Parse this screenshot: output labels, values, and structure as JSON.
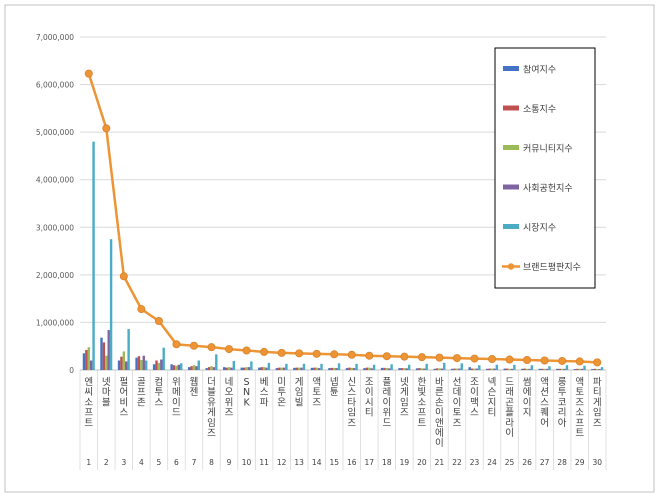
{
  "chart_data": {
    "type": "bar",
    "combo_line_series": "브랜드평판지수",
    "categories": [
      "엔씨소프트",
      "넷마블",
      "펄어비스",
      "골프존",
      "컴투스",
      "위메이드",
      "웹젠",
      "더블유게임즈",
      "네오위즈",
      "SNK",
      "베스파",
      "미투온",
      "게임빌",
      "액토즈",
      "넵튠",
      "신스타임즈",
      "조이시티",
      "플레이위드",
      "넷게임즈",
      "한빛소프트",
      "바른손이앤에이",
      "선데이토즈",
      "조이맥스",
      "넥슨지티",
      "드래곤플라이",
      "썸에이지",
      "액션스퀘어",
      "룽투코리아",
      "액토즈소프트",
      "파티게임즈"
    ],
    "ranks": [
      "1",
      "2",
      "3",
      "4",
      "5",
      "6",
      "7",
      "8",
      "9",
      "10",
      "11",
      "12",
      "13",
      "14",
      "15",
      "16",
      "17",
      "18",
      "19",
      "20",
      "21",
      "22",
      "23",
      "24",
      "25",
      "26",
      "27",
      "28",
      "29",
      "30"
    ],
    "series": [
      {
        "name": "참여지수",
        "color": "#4472c4",
        "values": [
          350000,
          680000,
          200000,
          260000,
          120000,
          120000,
          60000,
          40000,
          60000,
          50000,
          50000,
          40000,
          45000,
          45000,
          40000,
          40000,
          40000,
          45000,
          40000,
          35000,
          25000,
          25000,
          60000,
          25000,
          30000,
          25000,
          25000,
          25000,
          20000,
          20000
        ]
      },
      {
        "name": "소통지수",
        "color": "#c0504d",
        "values": [
          420000,
          580000,
          280000,
          290000,
          200000,
          100000,
          80000,
          60000,
          50000,
          50000,
          60000,
          50000,
          50000,
          50000,
          45000,
          50000,
          50000,
          45000,
          40000,
          40000,
          35000,
          30000,
          30000,
          30000,
          30000,
          30000,
          25000,
          25000,
          25000,
          25000
        ]
      },
      {
        "name": "커뮤니티지수",
        "color": "#9bbb59",
        "values": [
          480000,
          300000,
          390000,
          210000,
          150000,
          90000,
          100000,
          80000,
          60000,
          60000,
          60000,
          50000,
          50000,
          50000,
          45000,
          45000,
          50000,
          40000,
          40000,
          35000,
          35000,
          30000,
          30000,
          30000,
          25000,
          25000,
          25000,
          25000,
          25000,
          20000
        ]
      },
      {
        "name": "사회공헌지수",
        "color": "#8064a2",
        "values": [
          200000,
          840000,
          180000,
          300000,
          220000,
          110000,
          80000,
          60000,
          50000,
          60000,
          50000,
          50000,
          50000,
          40000,
          40000,
          40000,
          35000,
          35000,
          35000,
          30000,
          30000,
          30000,
          30000,
          30000,
          25000,
          25000,
          25000,
          25000,
          25000,
          20000
        ]
      },
      {
        "name": "시장지수",
        "color": "#4bacc6",
        "values": [
          4800000,
          2750000,
          860000,
          200000,
          470000,
          140000,
          200000,
          330000,
          190000,
          180000,
          150000,
          130000,
          130000,
          130000,
          140000,
          130000,
          110000,
          120000,
          110000,
          130000,
          150000,
          140000,
          100000,
          110000,
          110000,
          100000,
          80000,
          100000,
          90000,
          60000
        ]
      }
    ],
    "line": {
      "name": "브랜드평판지수",
      "color": "#ed9434",
      "values": [
        6230000,
        5080000,
        1970000,
        1280000,
        1030000,
        540000,
        510000,
        480000,
        440000,
        410000,
        380000,
        360000,
        350000,
        340000,
        330000,
        320000,
        300000,
        290000,
        280000,
        270000,
        260000,
        250000,
        240000,
        230000,
        220000,
        210000,
        200000,
        190000,
        180000,
        160000
      ]
    },
    "y_ticks": [
      "0",
      "1,000,000",
      "2,000,000",
      "3,000,000",
      "4,000,000",
      "5,000,000",
      "6,000,000",
      "7,000,000"
    ],
    "ylim": [
      0,
      7000000
    ],
    "legend_labels": [
      "참여지수",
      "소통지수",
      "커뮤니티지수",
      "사회공헌지수",
      "시장지수",
      "브랜드평판지수"
    ],
    "legend_position": "top-right",
    "grid": true
  }
}
